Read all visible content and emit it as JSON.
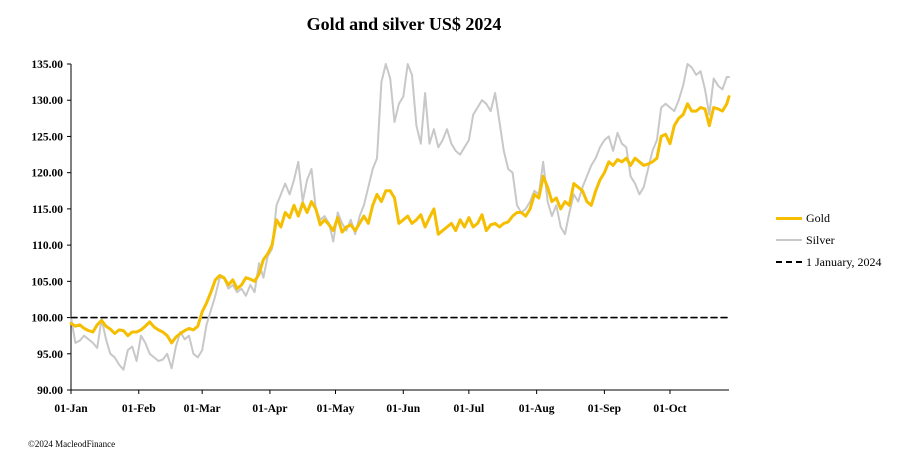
{
  "chart_data": {
    "type": "line",
    "title": "Gold and silver  US$ 2024",
    "xlabel": "",
    "ylabel": "",
    "ylim": [
      90,
      135
    ],
    "yticks": [
      "90.00",
      "95.00",
      "100.00",
      "105.00",
      "110.00",
      "115.00",
      "120.00",
      "125.00",
      "130.00",
      "135.00"
    ],
    "xticks": [
      "01-Jan",
      "01-Feb",
      "01-Mar",
      "01-Apr",
      "01-May",
      "01-Jun",
      "01-Jul",
      "01-Aug",
      "01-Sep",
      "01-Oct"
    ],
    "xtick_days": [
      1,
      32,
      61,
      92,
      122,
      153,
      183,
      214,
      245,
      275
    ],
    "x_range_days": [
      1,
      293
    ],
    "grid": false,
    "legend_position": "right",
    "series": [
      {
        "name": "Gold",
        "color": "#F5BE00",
        "points": [
          [
            1,
            99.2
          ],
          [
            3,
            98.8
          ],
          [
            5,
            99.0
          ],
          [
            7,
            98.5
          ],
          [
            9,
            98.2
          ],
          [
            11,
            98.0
          ],
          [
            13,
            99.0
          ],
          [
            15,
            99.6
          ],
          [
            17,
            98.8
          ],
          [
            19,
            98.4
          ],
          [
            21,
            97.8
          ],
          [
            23,
            98.3
          ],
          [
            25,
            98.2
          ],
          [
            27,
            97.5
          ],
          [
            29,
            98.0
          ],
          [
            31,
            98.0
          ],
          [
            33,
            98.3
          ],
          [
            35,
            98.8
          ],
          [
            37,
            99.4
          ],
          [
            39,
            98.7
          ],
          [
            41,
            98.3
          ],
          [
            43,
            98.0
          ],
          [
            45,
            97.5
          ],
          [
            47,
            96.5
          ],
          [
            49,
            97.3
          ],
          [
            51,
            97.8
          ],
          [
            53,
            98.2
          ],
          [
            55,
            98.5
          ],
          [
            57,
            98.3
          ],
          [
            59,
            98.8
          ],
          [
            61,
            100.8
          ],
          [
            63,
            102.0
          ],
          [
            65,
            103.5
          ],
          [
            67,
            105.2
          ],
          [
            69,
            105.8
          ],
          [
            71,
            105.5
          ],
          [
            73,
            104.5
          ],
          [
            75,
            105.2
          ],
          [
            77,
            104.0
          ],
          [
            79,
            104.5
          ],
          [
            81,
            105.5
          ],
          [
            83,
            105.3
          ],
          [
            85,
            105.0
          ],
          [
            87,
            106.0
          ],
          [
            89,
            108.0
          ],
          [
            91,
            108.8
          ],
          [
            93,
            110.0
          ],
          [
            95,
            113.5
          ],
          [
            97,
            112.5
          ],
          [
            99,
            114.5
          ],
          [
            101,
            113.8
          ],
          [
            103,
            115.5
          ],
          [
            105,
            114.0
          ],
          [
            107,
            115.8
          ],
          [
            109,
            114.5
          ],
          [
            111,
            116.0
          ],
          [
            113,
            115.0
          ],
          [
            115,
            112.8
          ],
          [
            117,
            113.5
          ],
          [
            119,
            112.8
          ],
          [
            121,
            112.0
          ],
          [
            123,
            113.8
          ],
          [
            125,
            111.8
          ],
          [
            127,
            112.5
          ],
          [
            129,
            112.8
          ],
          [
            131,
            112.0
          ],
          [
            133,
            113.0
          ],
          [
            135,
            114.0
          ],
          [
            137,
            113.0
          ],
          [
            139,
            115.5
          ],
          [
            141,
            117.0
          ],
          [
            143,
            116.0
          ],
          [
            145,
            117.5
          ],
          [
            147,
            117.5
          ],
          [
            149,
            116.5
          ],
          [
            151,
            113.0
          ],
          [
            153,
            113.5
          ],
          [
            155,
            114.0
          ],
          [
            157,
            113.0
          ],
          [
            159,
            113.5
          ],
          [
            161,
            114.2
          ],
          [
            163,
            112.5
          ],
          [
            165,
            113.8
          ],
          [
            167,
            115.0
          ],
          [
            169,
            111.5
          ],
          [
            171,
            112.0
          ],
          [
            173,
            112.5
          ],
          [
            175,
            113.0
          ],
          [
            177,
            112.0
          ],
          [
            179,
            113.5
          ],
          [
            181,
            112.5
          ],
          [
            183,
            113.8
          ],
          [
            185,
            112.5
          ],
          [
            187,
            113.0
          ],
          [
            189,
            114.2
          ],
          [
            191,
            112.0
          ],
          [
            193,
            112.8
          ],
          [
            195,
            113.0
          ],
          [
            197,
            112.5
          ],
          [
            199,
            113.0
          ],
          [
            201,
            113.2
          ],
          [
            203,
            114.0
          ],
          [
            205,
            114.5
          ],
          [
            207,
            114.5
          ],
          [
            209,
            114.0
          ],
          [
            211,
            115.0
          ],
          [
            213,
            117.0
          ],
          [
            215,
            116.5
          ],
          [
            217,
            119.5
          ],
          [
            219,
            118.0
          ],
          [
            221,
            116.0
          ],
          [
            223,
            116.5
          ],
          [
            225,
            115.0
          ],
          [
            227,
            116.0
          ],
          [
            229,
            115.5
          ],
          [
            231,
            118.5
          ],
          [
            233,
            118.0
          ],
          [
            235,
            117.5
          ],
          [
            237,
            116.0
          ],
          [
            239,
            115.5
          ],
          [
            241,
            117.5
          ],
          [
            243,
            119.0
          ],
          [
            245,
            120.0
          ],
          [
            247,
            121.5
          ],
          [
            249,
            121.0
          ],
          [
            251,
            121.8
          ],
          [
            253,
            121.5
          ],
          [
            255,
            122.0
          ],
          [
            257,
            121.0
          ],
          [
            259,
            122.0
          ],
          [
            261,
            121.5
          ],
          [
            263,
            121.0
          ],
          [
            265,
            121.2
          ],
          [
            267,
            121.5
          ],
          [
            269,
            122.0
          ],
          [
            271,
            125.0
          ],
          [
            273,
            125.3
          ],
          [
            275,
            124.0
          ],
          [
            277,
            126.5
          ],
          [
            279,
            127.5
          ],
          [
            281,
            128.0
          ],
          [
            283,
            129.5
          ],
          [
            285,
            128.5
          ],
          [
            287,
            128.5
          ],
          [
            289,
            129.0
          ],
          [
            291,
            128.8
          ],
          [
            293,
            126.5
          ],
          [
            295,
            129.0
          ],
          [
            297,
            128.8
          ],
          [
            299,
            128.5
          ],
          [
            301,
            129.5
          ],
          [
            302,
            130.5
          ]
        ]
      },
      {
        "name": "Silver",
        "color": "#C8C8C8",
        "points": [
          [
            1,
            100.0
          ],
          [
            3,
            96.5
          ],
          [
            5,
            96.8
          ],
          [
            7,
            97.5
          ],
          [
            9,
            97.0
          ],
          [
            11,
            96.5
          ],
          [
            13,
            95.8
          ],
          [
            15,
            99.8
          ],
          [
            17,
            97.0
          ],
          [
            19,
            95.0
          ],
          [
            21,
            94.5
          ],
          [
            23,
            93.5
          ],
          [
            25,
            92.8
          ],
          [
            27,
            95.5
          ],
          [
            29,
            96.0
          ],
          [
            31,
            94.0
          ],
          [
            33,
            97.5
          ],
          [
            35,
            96.5
          ],
          [
            37,
            95.0
          ],
          [
            39,
            94.5
          ],
          [
            41,
            94.0
          ],
          [
            43,
            94.2
          ],
          [
            45,
            95.0
          ],
          [
            47,
            93.0
          ],
          [
            49,
            96.0
          ],
          [
            51,
            98.0
          ],
          [
            53,
            97.0
          ],
          [
            55,
            97.5
          ],
          [
            57,
            95.0
          ],
          [
            59,
            94.5
          ],
          [
            61,
            95.5
          ],
          [
            63,
            99.0
          ],
          [
            65,
            101.0
          ],
          [
            67,
            103.0
          ],
          [
            69,
            105.5
          ],
          [
            71,
            105.5
          ],
          [
            73,
            104.0
          ],
          [
            75,
            104.5
          ],
          [
            77,
            103.5
          ],
          [
            79,
            104.0
          ],
          [
            81,
            103.0
          ],
          [
            83,
            104.5
          ],
          [
            85,
            103.5
          ],
          [
            87,
            107.5
          ],
          [
            89,
            105.5
          ],
          [
            91,
            108.5
          ],
          [
            93,
            109.5
          ],
          [
            95,
            115.5
          ],
          [
            97,
            117.0
          ],
          [
            99,
            118.5
          ],
          [
            101,
            117.0
          ],
          [
            103,
            119.0
          ],
          [
            105,
            121.5
          ],
          [
            107,
            116.0
          ],
          [
            109,
            119.0
          ],
          [
            111,
            120.5
          ],
          [
            113,
            115.0
          ],
          [
            115,
            113.5
          ],
          [
            117,
            114.0
          ],
          [
            119,
            113.0
          ],
          [
            121,
            110.5
          ],
          [
            123,
            114.5
          ],
          [
            125,
            113.0
          ],
          [
            127,
            112.0
          ],
          [
            129,
            113.5
          ],
          [
            131,
            111.5
          ],
          [
            133,
            114.0
          ],
          [
            135,
            115.5
          ],
          [
            137,
            118.0
          ],
          [
            139,
            120.5
          ],
          [
            141,
            122.0
          ],
          [
            143,
            132.5
          ],
          [
            145,
            135.0
          ],
          [
            147,
            133.0
          ],
          [
            149,
            127.0
          ],
          [
            151,
            129.5
          ],
          [
            153,
            130.5
          ],
          [
            155,
            135.0
          ],
          [
            157,
            133.5
          ],
          [
            159,
            126.5
          ],
          [
            161,
            124.0
          ],
          [
            163,
            131.0
          ],
          [
            165,
            124.0
          ],
          [
            167,
            126.0
          ],
          [
            169,
            123.5
          ],
          [
            171,
            124.5
          ],
          [
            173,
            126.0
          ],
          [
            175,
            124.0
          ],
          [
            177,
            123.0
          ],
          [
            179,
            122.5
          ],
          [
            181,
            123.5
          ],
          [
            183,
            124.5
          ],
          [
            185,
            128.0
          ],
          [
            187,
            129.0
          ],
          [
            189,
            130.0
          ],
          [
            191,
            129.5
          ],
          [
            193,
            128.5
          ],
          [
            195,
            131.0
          ],
          [
            197,
            127.0
          ],
          [
            199,
            123.0
          ],
          [
            201,
            120.5
          ],
          [
            203,
            120.0
          ],
          [
            205,
            115.5
          ],
          [
            207,
            114.5
          ],
          [
            209,
            115.0
          ],
          [
            211,
            116.0
          ],
          [
            213,
            117.5
          ],
          [
            215,
            117.0
          ],
          [
            217,
            121.5
          ],
          [
            219,
            116.0
          ],
          [
            221,
            114.0
          ],
          [
            223,
            115.5
          ],
          [
            225,
            112.5
          ],
          [
            227,
            111.5
          ],
          [
            229,
            114.5
          ],
          [
            231,
            117.0
          ],
          [
            233,
            116.0
          ],
          [
            235,
            118.0
          ],
          [
            237,
            119.5
          ],
          [
            239,
            121.0
          ],
          [
            241,
            122.0
          ],
          [
            243,
            123.5
          ],
          [
            245,
            124.5
          ],
          [
            247,
            125.0
          ],
          [
            249,
            123.0
          ],
          [
            251,
            125.5
          ],
          [
            253,
            124.0
          ],
          [
            255,
            123.5
          ],
          [
            257,
            119.5
          ],
          [
            259,
            118.5
          ],
          [
            261,
            117.0
          ],
          [
            263,
            118.0
          ],
          [
            265,
            120.5
          ],
          [
            267,
            123.0
          ],
          [
            269,
            124.5
          ],
          [
            271,
            129.0
          ],
          [
            273,
            129.5
          ],
          [
            275,
            129.0
          ],
          [
            277,
            128.5
          ],
          [
            279,
            130.0
          ],
          [
            281,
            132.0
          ],
          [
            283,
            135.0
          ],
          [
            285,
            134.5
          ],
          [
            287,
            133.5
          ],
          [
            289,
            134.0
          ],
          [
            291,
            131.5
          ],
          [
            293,
            128.0
          ],
          [
            295,
            133.0
          ],
          [
            297,
            132.0
          ],
          [
            299,
            131.5
          ],
          [
            301,
            133.2
          ],
          [
            302,
            133.2
          ]
        ]
      },
      {
        "name": "1 January, 2024",
        "color": "#000000",
        "dashed": true,
        "points": [
          [
            1,
            100
          ],
          [
            302,
            100
          ]
        ]
      }
    ]
  },
  "legend": {
    "gold": "Gold",
    "silver": "Silver",
    "baseline": "1 January, 2024"
  },
  "footer": {
    "copyright": "©2024 MacleodFinance"
  }
}
